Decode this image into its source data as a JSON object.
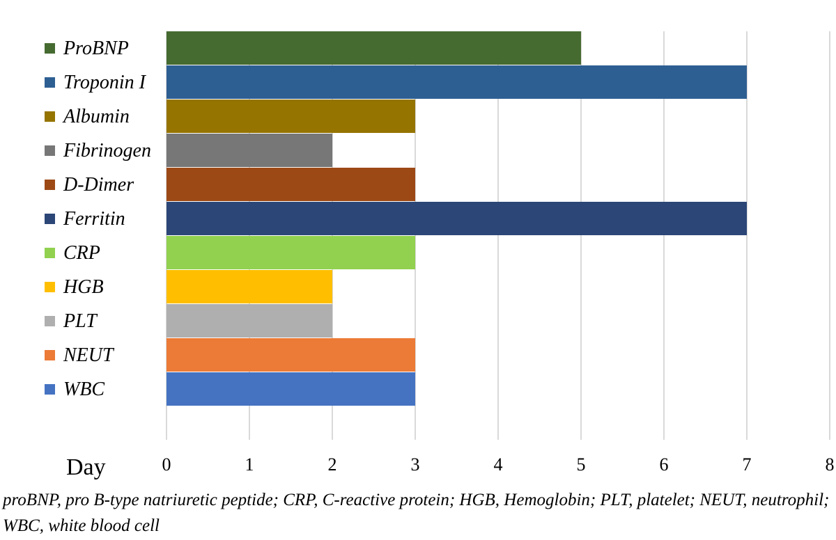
{
  "chart_data": {
    "type": "bar",
    "orientation": "horizontal",
    "categories": [
      "ProBNP",
      "Troponin I",
      "Albumin",
      "Fibrinogen",
      "D-Dimer",
      "Ferritin",
      "CRP",
      "HGB",
      "PLT",
      "NEUT",
      "WBC"
    ],
    "values": [
      5,
      7,
      3,
      2,
      3,
      7,
      3,
      2,
      2,
      3,
      3
    ],
    "colors": [
      "#466b31",
      "#2e5f92",
      "#957400",
      "#777777",
      "#9d4916",
      "#2b4677",
      "#91d14f",
      "#ffbf00",
      "#afafaf",
      "#ec7b37",
      "#4573c2"
    ],
    "xlabel": "Day",
    "xlim": [
      0,
      8
    ],
    "xticks": [
      "0",
      "1",
      "2",
      "3",
      "4",
      "5",
      "6",
      "7",
      "8"
    ],
    "grid": true,
    "legend_placement": "left"
  },
  "footnote": "proBNP, pro B-type natriuretic peptide; CRP, C-reactive protein; HGB, Hemoglobin; PLT, platelet; NEUT, neutrophil; WBC, white blood cell"
}
